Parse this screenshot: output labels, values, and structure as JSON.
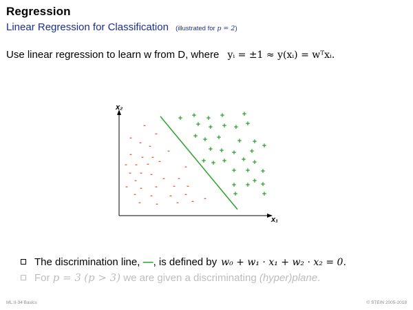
{
  "header": {
    "title": "Regression",
    "subtitle": "Linear Regression for Classification",
    "subtitle_note_prefix": "(illustrated for",
    "subtitle_note_math": "p = 2",
    "subtitle_note_suffix": ")"
  },
  "intro": {
    "text": "Use linear regression to learn w from D, where",
    "formula": "yᵢ = ±1  ≈  y(xᵢ) = wᵀxᵢ."
  },
  "plot": {
    "x_label": "x₁",
    "y_label": "x₂",
    "line_color": "#2aa12a",
    "minus_color": "#f15a22",
    "plus_color": "#2aa12a",
    "minus_symbol": "-",
    "plus_symbol": "+",
    "decision_line": [
      [
        73,
        24
      ],
      [
        185,
        159
      ]
    ],
    "minus_points": [
      [
        50,
        40
      ],
      [
        67,
        52
      ],
      [
        30,
        58
      ],
      [
        44,
        65
      ],
      [
        58,
        70
      ],
      [
        30,
        82
      ],
      [
        47,
        86
      ],
      [
        62,
        86
      ],
      [
        85,
        77
      ],
      [
        23,
        97
      ],
      [
        38,
        97
      ],
      [
        55,
        96
      ],
      [
        72,
        92
      ],
      [
        110,
        100
      ],
      [
        29,
        109
      ],
      [
        45,
        109
      ],
      [
        60,
        111
      ],
      [
        37,
        120
      ],
      [
        78,
        117
      ],
      [
        100,
        117
      ],
      [
        24,
        129
      ],
      [
        45,
        131
      ],
      [
        67,
        129
      ],
      [
        93,
        128
      ],
      [
        113,
        128
      ],
      [
        36,
        140
      ],
      [
        60,
        142
      ],
      [
        88,
        142
      ],
      [
        110,
        140
      ],
      [
        43,
        152
      ],
      [
        68,
        154
      ],
      [
        98,
        152
      ],
      [
        120,
        150
      ],
      [
        138,
        146
      ]
    ],
    "plus_points": [
      [
        102,
        30
      ],
      [
        122,
        26
      ],
      [
        143,
        30
      ],
      [
        163,
        26
      ],
      [
        195,
        24
      ],
      [
        128,
        39
      ],
      [
        146,
        43
      ],
      [
        166,
        41
      ],
      [
        183,
        43
      ],
      [
        200,
        38
      ],
      [
        124,
        56
      ],
      [
        138,
        61
      ],
      [
        158,
        58
      ],
      [
        188,
        63
      ],
      [
        210,
        64
      ],
      [
        146,
        75
      ],
      [
        162,
        77
      ],
      [
        180,
        80
      ],
      [
        206,
        78
      ],
      [
        224,
        70
      ],
      [
        136,
        92
      ],
      [
        150,
        95
      ],
      [
        166,
        92
      ],
      [
        194,
        90
      ],
      [
        210,
        94
      ],
      [
        180,
        106
      ],
      [
        200,
        106
      ],
      [
        222,
        107
      ],
      [
        180,
        127
      ],
      [
        200,
        127
      ],
      [
        222,
        126
      ],
      [
        210,
        121
      ],
      [
        224,
        140
      ],
      [
        182,
        140
      ]
    ]
  },
  "bullets": [
    {
      "prefix": "The discrimination line,",
      "glyph": "—",
      "suffix": ", is defined by",
      "equation": "w₀ + w₁ · x₁ + w₂ · x₂ = 0."
    },
    {
      "prefix": "For",
      "math1": "p = 3",
      "paren_math": "(p > 3)",
      "middle": "we are given a discriminating",
      "italic": "(hyper)plane",
      "end": "."
    }
  ],
  "footer": {
    "left": "ML:II-34    Basics",
    "right": "© STEIN 2005-2018"
  }
}
